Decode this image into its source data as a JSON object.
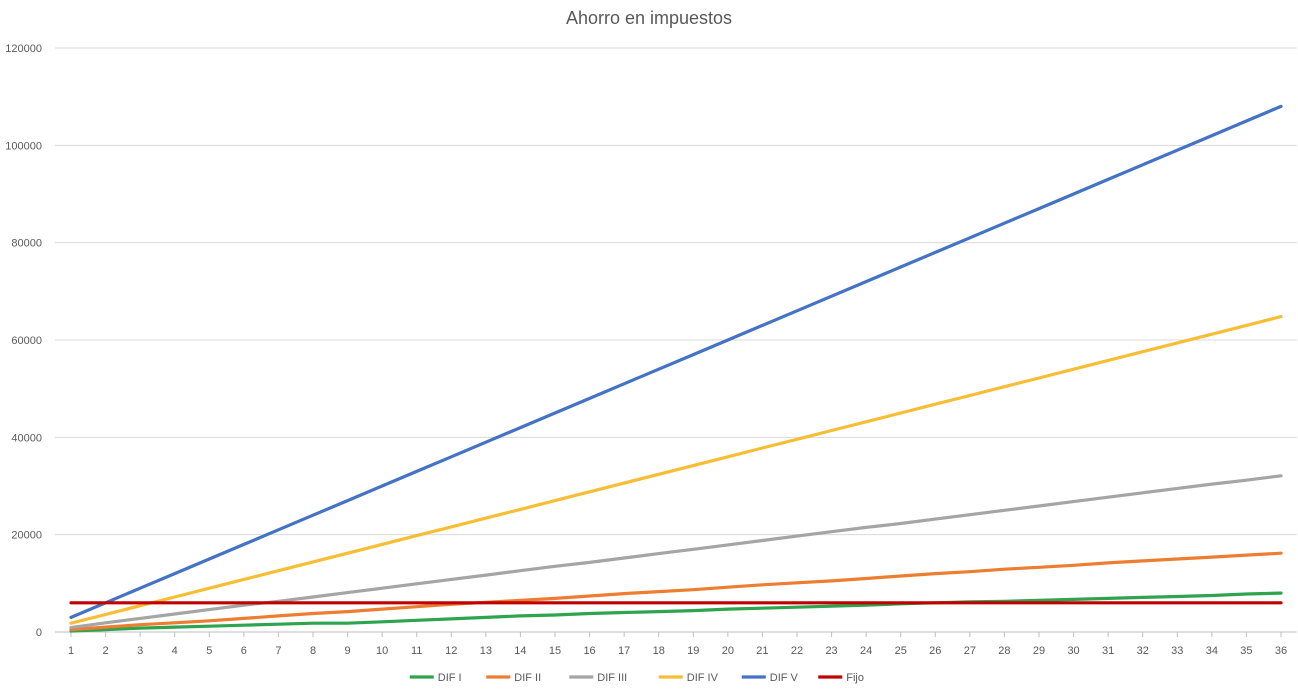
{
  "chart_data": {
    "type": "line",
    "title": "Ahorro en impuestos",
    "xlabel": "",
    "ylabel": "",
    "x": [
      1,
      2,
      3,
      4,
      5,
      6,
      7,
      8,
      9,
      10,
      11,
      12,
      13,
      14,
      15,
      16,
      17,
      18,
      19,
      20,
      21,
      22,
      23,
      24,
      25,
      26,
      27,
      28,
      29,
      30,
      31,
      32,
      33,
      34,
      35,
      36
    ],
    "ylim": [
      0,
      120000
    ],
    "yticks": [
      0,
      20000,
      40000,
      60000,
      80000,
      100000,
      120000
    ],
    "grid": "horizontal",
    "legend_position": "bottom",
    "series": [
      {
        "name": "DIF I",
        "color": "#2ea44f",
        "values": [
          200,
          500,
          800,
          1000,
          1200,
          1400,
          1600,
          1800,
          1800,
          2100,
          2400,
          2700,
          3000,
          3300,
          3500,
          3800,
          4000,
          4200,
          4400,
          4700,
          4900,
          5100,
          5300,
          5500,
          5800,
          6000,
          6200,
          6300,
          6500,
          6700,
          6900,
          7100,
          7300,
          7500,
          7800,
          8000
        ]
      },
      {
        "name": "DIF II",
        "color": "#ed7d31",
        "values": [
          500,
          1000,
          1500,
          1900,
          2300,
          2800,
          3300,
          3800,
          4200,
          4700,
          5200,
          5700,
          6100,
          6500,
          6900,
          7400,
          7900,
          8300,
          8700,
          9200,
          9700,
          10100,
          10500,
          11000,
          11500,
          12000,
          12400,
          12900,
          13300,
          13700,
          14200,
          14600,
          15000,
          15400,
          15800,
          16200
        ]
      },
      {
        "name": "DIF III",
        "color": "#a5a5a5",
        "values": [
          900,
          1900,
          2800,
          3700,
          4600,
          5500,
          6300,
          7200,
          8100,
          9000,
          9900,
          10800,
          11700,
          12600,
          13500,
          14300,
          15200,
          16100,
          17000,
          17900,
          18800,
          19700,
          20600,
          21500,
          22300,
          23200,
          24100,
          25000,
          25900,
          26800,
          27700,
          28600,
          29500,
          30400,
          31200,
          32100
        ]
      },
      {
        "name": "DIF IV",
        "color": "#f7bd34",
        "values": [
          1800,
          3600,
          5400,
          7200,
          9000,
          10800,
          12600,
          14400,
          16200,
          18000,
          19800,
          21600,
          23400,
          25200,
          27000,
          28800,
          30600,
          32400,
          34200,
          36000,
          37800,
          39600,
          41400,
          43200,
          45000,
          46800,
          48600,
          50400,
          52200,
          54000,
          55800,
          57600,
          59400,
          61200,
          63000,
          64800
        ]
      },
      {
        "name": "DIF V",
        "color": "#4472c4",
        "values": [
          3000,
          6000,
          9000,
          12000,
          15000,
          18000,
          21000,
          24000,
          27000,
          30000,
          33000,
          36000,
          39000,
          42000,
          45000,
          48000,
          51000,
          54000,
          57000,
          60000,
          63000,
          66000,
          69000,
          72000,
          75000,
          78000,
          81000,
          84000,
          87000,
          90000,
          93000,
          96000,
          99000,
          102000,
          105000,
          108000
        ]
      },
      {
        "name": "Fijo",
        "color": "#c00000",
        "values": [
          6000,
          6000,
          6000,
          6000,
          6000,
          6000,
          6000,
          6000,
          6000,
          6000,
          6000,
          6000,
          6000,
          6000,
          6000,
          6000,
          6000,
          6000,
          6000,
          6000,
          6000,
          6000,
          6000,
          6000,
          6000,
          6000,
          6000,
          6000,
          6000,
          6000,
          6000,
          6000,
          6000,
          6000,
          6000,
          6000
        ]
      }
    ]
  }
}
